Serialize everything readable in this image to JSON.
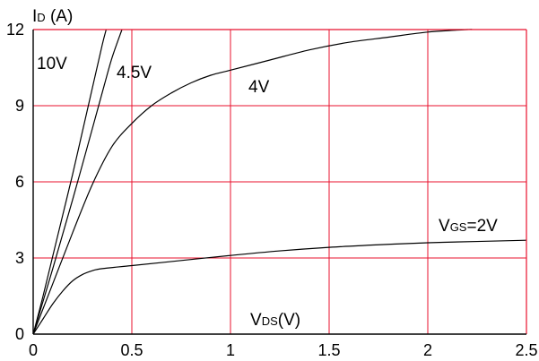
{
  "chart_data": {
    "type": "line",
    "ylabel": {
      "main": "I",
      "sub": "D",
      "unit": " (A)"
    },
    "xlabel": {
      "main": "V",
      "sub": "DS",
      "unit": "(V)"
    },
    "xlim": [
      0,
      2.5
    ],
    "ylim": [
      0,
      12
    ],
    "xticks": [
      "0",
      "0.5",
      "1",
      "1.5",
      "2",
      "2.5"
    ],
    "yticks": [
      "0",
      "3",
      "6",
      "9",
      "12"
    ],
    "grid": true,
    "grid_color": "#e8112d",
    "series": [
      {
        "label": {
          "text": "10V"
        },
        "x": [
          0,
          0.05,
          0.1,
          0.15,
          0.2,
          0.25,
          0.3,
          0.35,
          0.37
        ],
        "y": [
          0,
          1.5,
          3.1,
          4.7,
          6.3,
          8.0,
          9.7,
          11.4,
          12.0
        ]
      },
      {
        "label": {
          "text": "4.5V"
        },
        "x": [
          0,
          0.1,
          0.2,
          0.3,
          0.36,
          0.4,
          0.45
        ],
        "y": [
          0,
          2.6,
          5.3,
          8.1,
          9.8,
          10.9,
          12.0
        ]
      },
      {
        "label": {
          "text": "4V"
        },
        "x": [
          0,
          0.1,
          0.2,
          0.3,
          0.4,
          0.5,
          0.6,
          0.7,
          0.8,
          0.9,
          1.0,
          1.2,
          1.4,
          1.6,
          1.8,
          2.0,
          2.2,
          2.22
        ],
        "y": [
          0,
          2.0,
          4.0,
          5.9,
          7.4,
          8.3,
          9.0,
          9.5,
          9.9,
          10.2,
          10.4,
          10.8,
          11.2,
          11.5,
          11.7,
          11.9,
          12.0,
          12.0
        ]
      },
      {
        "label": {
          "main": "V",
          "sub": "GS",
          "rest": "=2V"
        },
        "x": [
          0,
          0.05,
          0.1,
          0.15,
          0.2,
          0.25,
          0.3,
          0.35,
          0.5,
          0.75,
          1.0,
          1.25,
          1.5,
          1.75,
          2.0,
          2.25,
          2.5
        ],
        "y": [
          0,
          0.6,
          1.2,
          1.7,
          2.1,
          2.35,
          2.5,
          2.58,
          2.7,
          2.9,
          3.1,
          3.28,
          3.42,
          3.52,
          3.6,
          3.65,
          3.7
        ]
      }
    ]
  }
}
